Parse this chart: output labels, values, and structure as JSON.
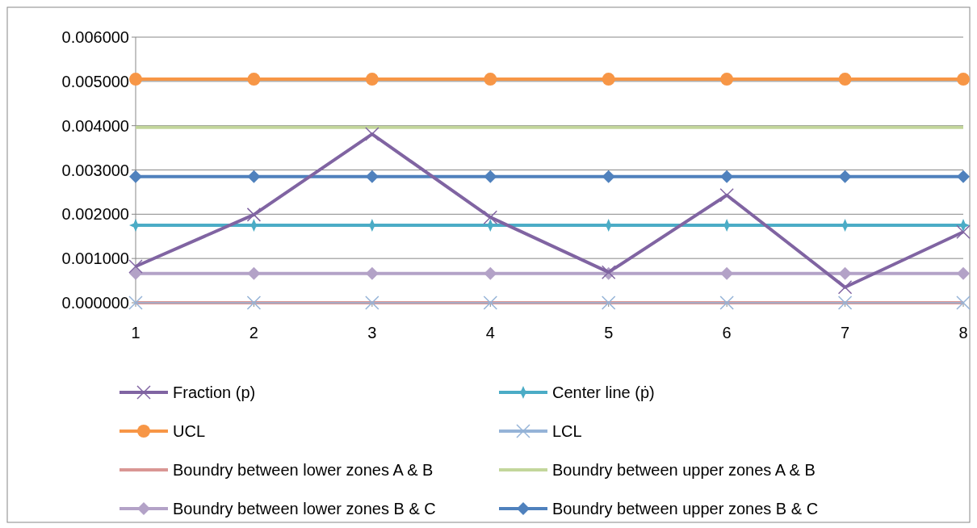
{
  "chart_data": {
    "type": "line",
    "categories": [
      "1",
      "2",
      "3",
      "4",
      "5",
      "6",
      "7",
      "8"
    ],
    "ylim": [
      0,
      0.006
    ],
    "yticks": [
      {
        "value": 0,
        "label": "0.000000"
      },
      {
        "value": 0.001,
        "label": "0.001000"
      },
      {
        "value": 0.002,
        "label": "0.002000"
      },
      {
        "value": 0.003,
        "label": "0.003000"
      },
      {
        "value": 0.004,
        "label": "0.004000"
      },
      {
        "value": 0.005,
        "label": "0.005000"
      },
      {
        "value": 0.006,
        "label": "0.006000"
      }
    ],
    "grid": "y",
    "legend": "bottom",
    "series": [
      {
        "name": "Boundry between lower zones  A & B",
        "color": "#d99694",
        "marker": "none",
        "values": [
          0,
          0,
          0,
          0,
          0,
          0,
          0,
          0
        ]
      },
      {
        "name": "LCL",
        "color": "#95b3d7",
        "marker": "cross",
        "values": [
          0,
          0,
          0,
          0,
          0,
          0,
          0,
          0
        ]
      },
      {
        "name": "Boundry between upper zones  A & B",
        "color": "#c3d69b",
        "marker": "none",
        "values": [
          0.00396,
          0.00396,
          0.00396,
          0.00396,
          0.00396,
          0.00396,
          0.00396,
          0.00396
        ]
      },
      {
        "name": "Boundry between lower zones  B & C",
        "color": "#b3a2c7",
        "marker": "diamond",
        "values": [
          0.00066,
          0.00066,
          0.00066,
          0.00066,
          0.00066,
          0.00066,
          0.00066,
          0.00066
        ]
      },
      {
        "name": "Boundry between upper zones  B & C",
        "color": "#4f81bd",
        "marker": "diamond",
        "values": [
          0.00285,
          0.00285,
          0.00285,
          0.00285,
          0.00285,
          0.00285,
          0.00285,
          0.00285
        ]
      },
      {
        "name": "Center line (ṗ)",
        "color": "#4bacc6",
        "marker": "star",
        "values": [
          0.00175,
          0.00175,
          0.00175,
          0.00175,
          0.00175,
          0.00175,
          0.00175,
          0.00175
        ]
      },
      {
        "name": "UCL",
        "color": "#f79646",
        "marker": "circle",
        "values": [
          0.00505,
          0.00505,
          0.00505,
          0.00505,
          0.00505,
          0.00505,
          0.00505,
          0.00505
        ]
      },
      {
        "name": "Fraction (p)",
        "color": "#8064a2",
        "marker": "cross",
        "values": [
          0.00082,
          0.00199,
          0.00381,
          0.00193,
          0.00069,
          0.00243,
          0.00035,
          0.0016
        ]
      }
    ]
  }
}
